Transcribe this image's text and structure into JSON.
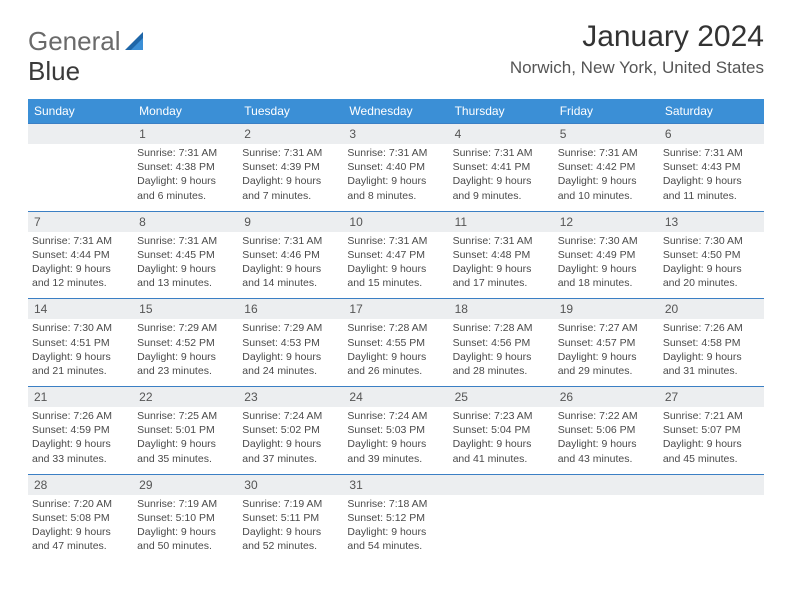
{
  "logo": {
    "general": "General",
    "blue": "Blue"
  },
  "title": "January 2024",
  "location": "Norwich, New York, United States",
  "colors": {
    "header_bg": "#3b8fd6",
    "border": "#3b7fc4",
    "daynum_bg": "#eceef0",
    "text": "#4a4a4a"
  },
  "day_headers": [
    "Sunday",
    "Monday",
    "Tuesday",
    "Wednesday",
    "Thursday",
    "Friday",
    "Saturday"
  ],
  "weeks": [
    [
      {
        "num": "",
        "sunrise": "",
        "sunset": "",
        "daylight": ""
      },
      {
        "num": "1",
        "sunrise": "Sunrise: 7:31 AM",
        "sunset": "Sunset: 4:38 PM",
        "daylight": "Daylight: 9 hours and 6 minutes."
      },
      {
        "num": "2",
        "sunrise": "Sunrise: 7:31 AM",
        "sunset": "Sunset: 4:39 PM",
        "daylight": "Daylight: 9 hours and 7 minutes."
      },
      {
        "num": "3",
        "sunrise": "Sunrise: 7:31 AM",
        "sunset": "Sunset: 4:40 PM",
        "daylight": "Daylight: 9 hours and 8 minutes."
      },
      {
        "num": "4",
        "sunrise": "Sunrise: 7:31 AM",
        "sunset": "Sunset: 4:41 PM",
        "daylight": "Daylight: 9 hours and 9 minutes."
      },
      {
        "num": "5",
        "sunrise": "Sunrise: 7:31 AM",
        "sunset": "Sunset: 4:42 PM",
        "daylight": "Daylight: 9 hours and 10 minutes."
      },
      {
        "num": "6",
        "sunrise": "Sunrise: 7:31 AM",
        "sunset": "Sunset: 4:43 PM",
        "daylight": "Daylight: 9 hours and 11 minutes."
      }
    ],
    [
      {
        "num": "7",
        "sunrise": "Sunrise: 7:31 AM",
        "sunset": "Sunset: 4:44 PM",
        "daylight": "Daylight: 9 hours and 12 minutes."
      },
      {
        "num": "8",
        "sunrise": "Sunrise: 7:31 AM",
        "sunset": "Sunset: 4:45 PM",
        "daylight": "Daylight: 9 hours and 13 minutes."
      },
      {
        "num": "9",
        "sunrise": "Sunrise: 7:31 AM",
        "sunset": "Sunset: 4:46 PM",
        "daylight": "Daylight: 9 hours and 14 minutes."
      },
      {
        "num": "10",
        "sunrise": "Sunrise: 7:31 AM",
        "sunset": "Sunset: 4:47 PM",
        "daylight": "Daylight: 9 hours and 15 minutes."
      },
      {
        "num": "11",
        "sunrise": "Sunrise: 7:31 AM",
        "sunset": "Sunset: 4:48 PM",
        "daylight": "Daylight: 9 hours and 17 minutes."
      },
      {
        "num": "12",
        "sunrise": "Sunrise: 7:30 AM",
        "sunset": "Sunset: 4:49 PM",
        "daylight": "Daylight: 9 hours and 18 minutes."
      },
      {
        "num": "13",
        "sunrise": "Sunrise: 7:30 AM",
        "sunset": "Sunset: 4:50 PM",
        "daylight": "Daylight: 9 hours and 20 minutes."
      }
    ],
    [
      {
        "num": "14",
        "sunrise": "Sunrise: 7:30 AM",
        "sunset": "Sunset: 4:51 PM",
        "daylight": "Daylight: 9 hours and 21 minutes."
      },
      {
        "num": "15",
        "sunrise": "Sunrise: 7:29 AM",
        "sunset": "Sunset: 4:52 PM",
        "daylight": "Daylight: 9 hours and 23 minutes."
      },
      {
        "num": "16",
        "sunrise": "Sunrise: 7:29 AM",
        "sunset": "Sunset: 4:53 PM",
        "daylight": "Daylight: 9 hours and 24 minutes."
      },
      {
        "num": "17",
        "sunrise": "Sunrise: 7:28 AM",
        "sunset": "Sunset: 4:55 PM",
        "daylight": "Daylight: 9 hours and 26 minutes."
      },
      {
        "num": "18",
        "sunrise": "Sunrise: 7:28 AM",
        "sunset": "Sunset: 4:56 PM",
        "daylight": "Daylight: 9 hours and 28 minutes."
      },
      {
        "num": "19",
        "sunrise": "Sunrise: 7:27 AM",
        "sunset": "Sunset: 4:57 PM",
        "daylight": "Daylight: 9 hours and 29 minutes."
      },
      {
        "num": "20",
        "sunrise": "Sunrise: 7:26 AM",
        "sunset": "Sunset: 4:58 PM",
        "daylight": "Daylight: 9 hours and 31 minutes."
      }
    ],
    [
      {
        "num": "21",
        "sunrise": "Sunrise: 7:26 AM",
        "sunset": "Sunset: 4:59 PM",
        "daylight": "Daylight: 9 hours and 33 minutes."
      },
      {
        "num": "22",
        "sunrise": "Sunrise: 7:25 AM",
        "sunset": "Sunset: 5:01 PM",
        "daylight": "Daylight: 9 hours and 35 minutes."
      },
      {
        "num": "23",
        "sunrise": "Sunrise: 7:24 AM",
        "sunset": "Sunset: 5:02 PM",
        "daylight": "Daylight: 9 hours and 37 minutes."
      },
      {
        "num": "24",
        "sunrise": "Sunrise: 7:24 AM",
        "sunset": "Sunset: 5:03 PM",
        "daylight": "Daylight: 9 hours and 39 minutes."
      },
      {
        "num": "25",
        "sunrise": "Sunrise: 7:23 AM",
        "sunset": "Sunset: 5:04 PM",
        "daylight": "Daylight: 9 hours and 41 minutes."
      },
      {
        "num": "26",
        "sunrise": "Sunrise: 7:22 AM",
        "sunset": "Sunset: 5:06 PM",
        "daylight": "Daylight: 9 hours and 43 minutes."
      },
      {
        "num": "27",
        "sunrise": "Sunrise: 7:21 AM",
        "sunset": "Sunset: 5:07 PM",
        "daylight": "Daylight: 9 hours and 45 minutes."
      }
    ],
    [
      {
        "num": "28",
        "sunrise": "Sunrise: 7:20 AM",
        "sunset": "Sunset: 5:08 PM",
        "daylight": "Daylight: 9 hours and 47 minutes."
      },
      {
        "num": "29",
        "sunrise": "Sunrise: 7:19 AM",
        "sunset": "Sunset: 5:10 PM",
        "daylight": "Daylight: 9 hours and 50 minutes."
      },
      {
        "num": "30",
        "sunrise": "Sunrise: 7:19 AM",
        "sunset": "Sunset: 5:11 PM",
        "daylight": "Daylight: 9 hours and 52 minutes."
      },
      {
        "num": "31",
        "sunrise": "Sunrise: 7:18 AM",
        "sunset": "Sunset: 5:12 PM",
        "daylight": "Daylight: 9 hours and 54 minutes."
      },
      {
        "num": "",
        "sunrise": "",
        "sunset": "",
        "daylight": ""
      },
      {
        "num": "",
        "sunrise": "",
        "sunset": "",
        "daylight": ""
      },
      {
        "num": "",
        "sunrise": "",
        "sunset": "",
        "daylight": ""
      }
    ]
  ]
}
